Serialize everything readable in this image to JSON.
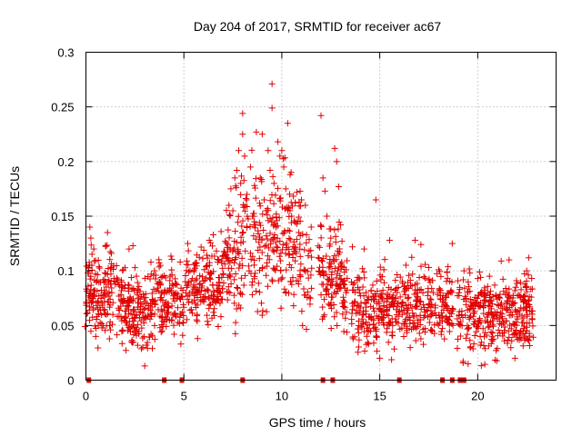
{
  "chart_data": {
    "type": "scatter",
    "title": "Day 204 of 2017, SRMTID for receiver ac67",
    "xlabel": "GPS time / hours",
    "ylabel": "SRMTID / TECUs",
    "xlim": [
      0,
      24
    ],
    "ylim": [
      0,
      0.3
    ],
    "x_ticks": [
      0,
      5,
      10,
      15,
      20
    ],
    "x_tick_labels": [
      "0",
      "5",
      "10",
      "15",
      "20"
    ],
    "y_ticks": [
      0,
      0.05,
      0.1,
      0.15,
      0.2,
      0.25,
      0.3
    ],
    "y_tick_labels": [
      "0",
      "0.05",
      "0.1",
      "0.15",
      "0.2",
      "0.25",
      "0.3"
    ],
    "grid": true,
    "marker": "plus",
    "color": "#e00000",
    "series": [
      {
        "name": "SRMTID",
        "points": [
          [
            -0.05,
            0.049
          ],
          [
            0.1,
            0.098
          ],
          [
            0.2,
            0.14
          ],
          [
            0.25,
            0.13
          ],
          [
            0.3,
            0.105
          ],
          [
            0.4,
            0.12
          ],
          [
            0.5,
            0.04
          ],
          [
            0.6,
            0.065
          ],
          [
            1.0,
            0.123
          ],
          [
            1.1,
            0.135
          ],
          [
            1.3,
            0.116
          ],
          [
            2.2,
            0.12
          ],
          [
            2.4,
            0.123
          ],
          [
            2.9,
            0.03
          ],
          [
            3.0,
            0.013
          ],
          [
            3.5,
            0.1
          ],
          [
            3.8,
            0.105
          ],
          [
            4.3,
            0.095
          ],
          [
            4.5,
            0.042
          ],
          [
            5.2,
            0.125
          ],
          [
            5.7,
            0.038
          ],
          [
            6.3,
            0.128
          ],
          [
            6.5,
            0.133
          ],
          [
            6.9,
            0.136
          ],
          [
            7.3,
            0.16
          ],
          [
            7.4,
            0.175
          ],
          [
            7.5,
            0.155
          ],
          [
            7.6,
            0.185
          ],
          [
            7.7,
            0.192
          ],
          [
            7.8,
            0.21
          ],
          [
            7.9,
            0.18
          ],
          [
            8.0,
            0.244
          ],
          [
            8.0,
            0.225
          ],
          [
            8.1,
            0.205
          ],
          [
            8.2,
            0.165
          ],
          [
            8.4,
            0.195
          ],
          [
            8.5,
            0.15
          ],
          [
            8.6,
            0.145
          ],
          [
            8.7,
            0.227
          ],
          [
            8.9,
            0.185
          ],
          [
            9.0,
            0.225
          ],
          [
            9.1,
            0.165
          ],
          [
            9.2,
            0.155
          ],
          [
            9.3,
            0.21
          ],
          [
            9.4,
            0.192
          ],
          [
            9.5,
            0.271
          ],
          [
            9.5,
            0.249
          ],
          [
            9.6,
            0.18
          ],
          [
            9.7,
            0.14
          ],
          [
            9.8,
            0.218
          ],
          [
            9.9,
            0.205
          ],
          [
            10.0,
            0.21
          ],
          [
            10.1,
            0.195
          ],
          [
            10.2,
            0.175
          ],
          [
            10.3,
            0.235
          ],
          [
            10.4,
            0.17
          ],
          [
            10.5,
            0.15
          ],
          [
            10.8,
            0.145
          ],
          [
            11.0,
            0.165
          ],
          [
            11.2,
            0.16
          ],
          [
            11.5,
            0.14
          ],
          [
            12.0,
            0.242
          ],
          [
            12.1,
            0.185
          ],
          [
            12.2,
            0.173
          ],
          [
            12.3,
            0.15
          ],
          [
            12.5,
            0.13
          ],
          [
            12.7,
            0.212
          ],
          [
            12.8,
            0.2
          ],
          [
            12.9,
            0.177
          ],
          [
            13.0,
            0.142
          ],
          [
            13.6,
            0.122
          ],
          [
            14.2,
            0.12
          ],
          [
            14.8,
            0.165
          ],
          [
            15.0,
            0.02
          ],
          [
            15.5,
            0.128
          ],
          [
            16.8,
            0.128
          ],
          [
            17.1,
            0.124
          ],
          [
            18.7,
            0.125
          ],
          [
            19.3,
            0.1
          ],
          [
            19.6,
            0.098
          ],
          [
            20.0,
            0.093
          ],
          [
            20.6,
            0.095
          ],
          [
            21.0,
            0.029
          ],
          [
            21.2,
            0.109
          ],
          [
            21.6,
            0.11
          ],
          [
            21.9,
            0.02
          ],
          [
            22.5,
            0.1
          ],
          [
            22.6,
            0.112
          ]
        ],
        "zero_markers_x": [
          0.15,
          4.0,
          4.9,
          8.0,
          12.1,
          12.6,
          16.0,
          18.2,
          18.7,
          19.1,
          19.3
        ]
      }
    ]
  }
}
